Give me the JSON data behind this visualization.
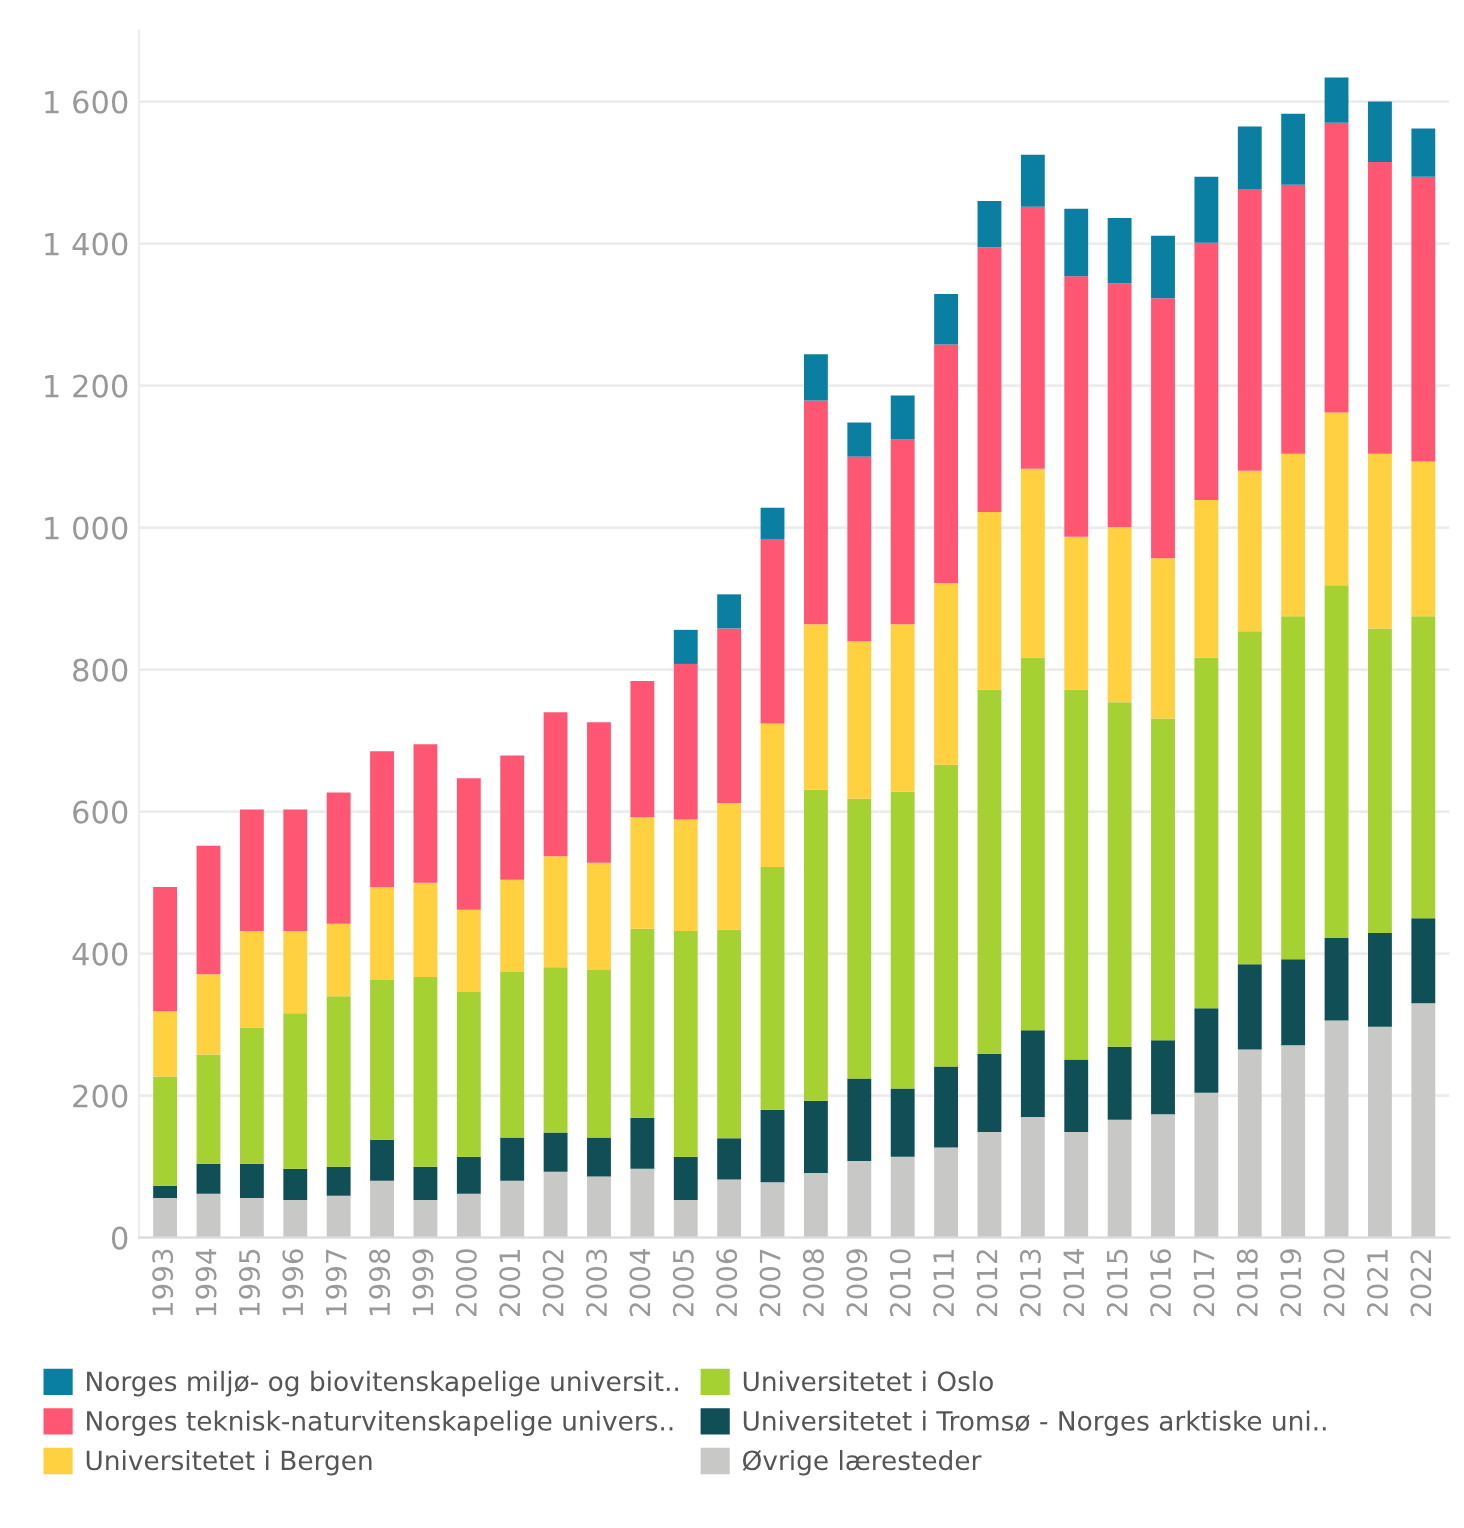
{
  "chart_data": {
    "type": "bar",
    "stacked": true,
    "categories": [
      "1993",
      "1994",
      "1995",
      "1996",
      "1997",
      "1998",
      "1999",
      "2000",
      "2001",
      "2002",
      "2003",
      "2004",
      "2005",
      "2006",
      "2007",
      "2008",
      "2009",
      "2010",
      "2011",
      "2012",
      "2013",
      "2014",
      "2015",
      "2016",
      "2017",
      "2018",
      "2019",
      "2020",
      "2021",
      "2022"
    ],
    "series": [
      {
        "name": "Øvrige læresteder",
        "color": "#c8c8c6",
        "values": [
          56,
          62,
          56,
          53,
          59,
          80,
          53,
          62,
          80,
          93,
          86,
          97,
          53,
          82,
          78,
          91,
          108,
          114,
          127,
          149,
          170,
          149,
          166,
          174,
          204,
          265,
          271,
          306,
          297,
          330
        ]
      },
      {
        "name": "Universitetet i Tromsø - Norges arktiske uni..",
        "color": "#0f4f55",
        "values": [
          17,
          42,
          48,
          44,
          41,
          58,
          47,
          52,
          61,
          55,
          55,
          72,
          61,
          58,
          102,
          102,
          116,
          96,
          114,
          110,
          122,
          102,
          103,
          104,
          119,
          120,
          121,
          116,
          132,
          120
        ]
      },
      {
        "name": "Universitetet i Oslo",
        "color": "#a5d133",
        "values": [
          154,
          154,
          192,
          219,
          240,
          225,
          267,
          232,
          233,
          233,
          236,
          266,
          318,
          294,
          342,
          438,
          394,
          418,
          425,
          513,
          525,
          521,
          485,
          453,
          494,
          469,
          483,
          497,
          429,
          425
        ]
      },
      {
        "name": "Universitetet i Bergen",
        "color": "#ffd03f",
        "values": [
          92,
          113,
          136,
          116,
          102,
          131,
          133,
          116,
          130,
          156,
          151,
          157,
          157,
          178,
          202,
          233,
          222,
          236,
          256,
          250,
          266,
          215,
          247,
          226,
          222,
          226,
          229,
          243,
          246,
          218
        ]
      },
      {
        "name": "Norges teknisk-naturvitenskapelige univers..",
        "color": "#ff5773",
        "values": [
          175,
          181,
          171,
          171,
          185,
          191,
          195,
          185,
          175,
          203,
          198,
          192,
          219,
          246,
          260,
          315,
          260,
          260,
          336,
          373,
          369,
          367,
          343,
          366,
          362,
          397,
          379,
          408,
          411,
          401
        ]
      },
      {
        "name": "Norges miljø- og biovitenskapelige universit..",
        "color": "#0b7fa2",
        "values": [
          null,
          null,
          null,
          null,
          null,
          null,
          null,
          null,
          null,
          null,
          null,
          null,
          48,
          48,
          44,
          65,
          48,
          62,
          71,
          65,
          73,
          95,
          92,
          88,
          93,
          88,
          100,
          64,
          85,
          68
        ]
      }
    ],
    "ylim": [
      0,
      1700
    ],
    "yticks": [
      0,
      {
        "value": 200,
        "label": "200"
      },
      {
        "value": 400,
        "label": "400"
      },
      {
        "value": 600,
        "label": "600"
      },
      {
        "value": 800,
        "label": "800"
      },
      {
        "value": 1000,
        "label": "1 000"
      },
      {
        "value": 1200,
        "label": "1 200"
      },
      {
        "value": 1400,
        "label": "1 400"
      },
      {
        "value": 1600,
        "label": "1 600"
      }
    ],
    "grid": "y",
    "legend": "bottom"
  }
}
